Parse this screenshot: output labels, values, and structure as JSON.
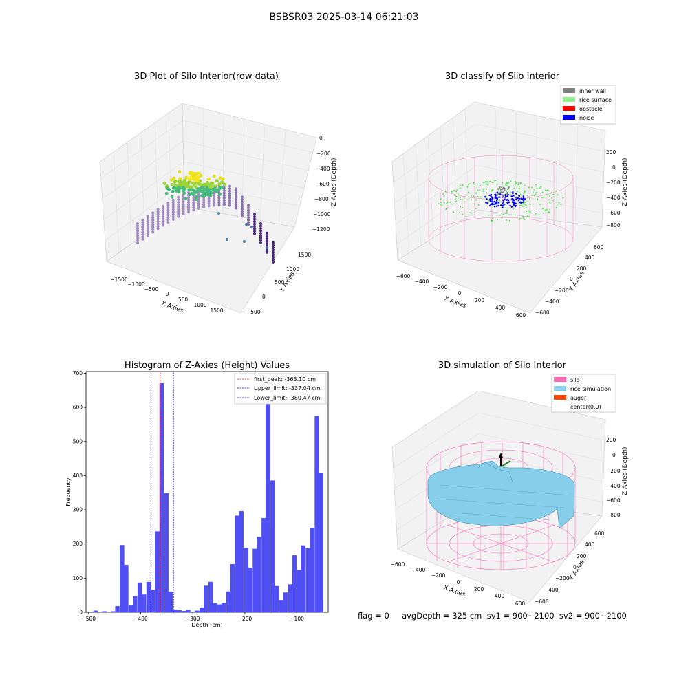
{
  "suptitle": "BSBSR03 2025-03-14 06:21:03",
  "footer": "flag = 0     avgDepth = 325 cm  sv1 = 900~2100  sv2 = 900~2100",
  "colors": {
    "hist_bar": "#4f4ff5",
    "first_peak": "#ff0000",
    "limits": "#0000ff",
    "inner_wall": "#808080",
    "rice_surface": "#90ee90",
    "obstacle": "#ff0000",
    "noise": "#0000ee",
    "silo": "#ff69b4",
    "rice_simulation": "#87ceeb",
    "auger": "#ff4500"
  },
  "chart_data": [
    {
      "type": "scatter",
      "subtype": "3d",
      "title": "3D Plot of Silo Interior(row data)",
      "xlabel": "X Axies",
      "ylabel": "Y Axies",
      "zlabel": "Z Axies (Depth)",
      "x_ticks": [
        "−1500",
        "−1000",
        "−500",
        "0",
        "500",
        "1000",
        "1500"
      ],
      "y_ticks": [
        "−500",
        "0",
        "500",
        "1000",
        "1500"
      ],
      "z_ticks": [
        "0",
        "−200",
        "−400",
        "−600",
        "−800",
        "−1000",
        "−1200"
      ],
      "grid": true
    },
    {
      "type": "scatter",
      "subtype": "3d",
      "title": "3D classify of Silo Interior",
      "xlabel": "X Axies",
      "ylabel": "Y Axies",
      "zlabel": "Z Axies (Depth)",
      "x_ticks": [
        "−600",
        "−400",
        "−200",
        "0",
        "200",
        "400",
        "600"
      ],
      "y_ticks": [
        "−600",
        "−400",
        "−200",
        "0",
        "200",
        "400",
        "600"
      ],
      "z_ticks": [
        "200",
        "0",
        "−200",
        "−400",
        "−600",
        "−800"
      ],
      "legend": [
        "inner wall",
        "rice surface",
        "obstacle",
        "noise"
      ],
      "legend_position": "top-right",
      "grid": true
    },
    {
      "type": "bar",
      "subtype": "histogram",
      "title": "Histogram of Z-Axies (Height) Values",
      "xlabel": "Depth (cm)",
      "ylabel": "Frequency",
      "xlim": [
        -505,
        -40
      ],
      "ylim": [
        0,
        705
      ],
      "x_ticks": [
        -500,
        -400,
        -300,
        -200,
        -100
      ],
      "y_ticks": [
        0,
        100,
        200,
        300,
        400,
        500,
        600,
        700
      ],
      "bin_width": 8.5,
      "bins": [
        [
          -491,
          5
        ],
        [
          -483,
          0
        ],
        [
          -474,
          3
        ],
        [
          -466,
          0
        ],
        [
          -457,
          3
        ],
        [
          -449,
          18
        ],
        [
          -440,
          197
        ],
        [
          -432,
          139
        ],
        [
          -423,
          20
        ],
        [
          -415,
          47
        ],
        [
          -406,
          87
        ],
        [
          -398,
          52
        ],
        [
          -389,
          89
        ],
        [
          -381,
          65
        ],
        [
          -372,
          237
        ],
        [
          -364,
          671
        ],
        [
          -355,
          349
        ],
        [
          -347,
          60
        ],
        [
          -338,
          8
        ],
        [
          -330,
          6
        ],
        [
          -321,
          4
        ],
        [
          -313,
          7
        ],
        [
          -304,
          2
        ],
        [
          -296,
          5
        ],
        [
          -287,
          14
        ],
        [
          -279,
          78
        ],
        [
          -270,
          89
        ],
        [
          -262,
          27
        ],
        [
          -253,
          23
        ],
        [
          -245,
          28
        ],
        [
          -236,
          61
        ],
        [
          -228,
          141
        ],
        [
          -219,
          283
        ],
        [
          -211,
          296
        ],
        [
          -202,
          189
        ],
        [
          -194,
          131
        ],
        [
          -185,
          186
        ],
        [
          -177,
          221
        ],
        [
          -168,
          276
        ],
        [
          -160,
          615
        ],
        [
          -151,
          386
        ],
        [
          -143,
          77
        ],
        [
          -134,
          36
        ],
        [
          -126,
          58
        ],
        [
          -117,
          82
        ],
        [
          -109,
          167
        ],
        [
          -100,
          124
        ],
        [
          -92,
          196
        ],
        [
          -83,
          188
        ],
        [
          -75,
          247
        ],
        [
          -66,
          575
        ],
        [
          -58,
          407
        ]
      ],
      "lines": [
        {
          "label": "first_peak: -363.10 cm",
          "x": -363.1,
          "color": "#ff0000"
        },
        {
          "label": "Upper_limit: -337.04 cm",
          "x": -337.04,
          "color": "#0000ff"
        },
        {
          "label": "Lower_limit: -380.47 cm",
          "x": -380.47,
          "color": "#0000ff"
        }
      ],
      "legend_position": "top-right"
    },
    {
      "type": "scatter",
      "subtype": "3d-surface",
      "title": "3D simulation of Silo Interior",
      "xlabel": "X Axies",
      "ylabel": "Y Axies",
      "zlabel": "Z Axies (Depth)",
      "x_ticks": [
        "−600",
        "−400",
        "−200",
        "0",
        "200",
        "400",
        "600"
      ],
      "y_ticks": [
        "−600",
        "−400",
        "−200",
        "0",
        "200",
        "400",
        "600"
      ],
      "z_ticks": [
        "200",
        "0",
        "−200",
        "−400",
        "−600",
        "−800"
      ],
      "legend": [
        "silo",
        "rice simulation",
        "auger",
        "center(0,0)"
      ],
      "legend_position": "top-right",
      "grid": true
    }
  ]
}
